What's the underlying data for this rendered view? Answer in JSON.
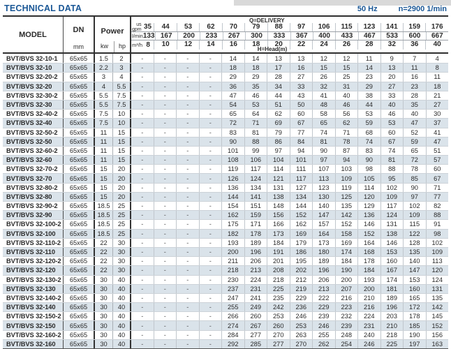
{
  "page": {
    "title": "TECHNICAL DATA",
    "frequency": "50 Hz",
    "speed": "n=2900 1/min"
  },
  "table": {
    "headers": {
      "model": "MODEL",
      "dn": "DN",
      "dn_unit": "mm",
      "power": "Power",
      "kw": "kw",
      "hp": "hp",
      "q_delivery": "Q=DELIVERY",
      "h_head": "H=Head(m)",
      "unit_usgpm_line1": "us",
      "unit_usgpm_line2": "gpm",
      "unit_lmin": "l/min",
      "unit_m3h": "m³/h"
    },
    "q_usgpm": [
      35,
      44,
      53,
      62,
      70,
      79,
      88,
      97,
      106,
      115,
      123,
      141,
      159,
      176
    ],
    "q_lmin": [
      133,
      167,
      200,
      233,
      267,
      300,
      333,
      367,
      400,
      433,
      467,
      533,
      600,
      667
    ],
    "q_m3h": [
      8,
      10,
      12,
      14,
      16,
      18,
      20,
      22,
      24,
      26,
      28,
      32,
      36,
      40
    ],
    "rows": [
      {
        "model": "BVT/BVS 32-10-1",
        "dn": "65x65",
        "kw": "1.5",
        "hp": "2",
        "head": [
          "-",
          "-",
          "-",
          "-",
          "14",
          "14",
          "13",
          "13",
          "12",
          "12",
          "11",
          "9",
          "7",
          "4"
        ]
      },
      {
        "model": "BVT/BVS 32-10",
        "dn": "65x65",
        "kw": "2.2",
        "hp": "3",
        "head": [
          "-",
          "-",
          "-",
          "-",
          "18",
          "18",
          "17",
          "16",
          "15",
          "15",
          "14",
          "13",
          "11",
          "8"
        ]
      },
      {
        "model": "BVT/BVS 32-20-2",
        "dn": "65x65",
        "kw": "3",
        "hp": "4",
        "head": [
          "-",
          "-",
          "-",
          "-",
          "29",
          "29",
          "28",
          "27",
          "26",
          "25",
          "23",
          "20",
          "16",
          "11"
        ]
      },
      {
        "model": "BVT/BVS 32-20",
        "dn": "65x65",
        "kw": "4",
        "hp": "5.5",
        "head": [
          "-",
          "-",
          "-",
          "-",
          "36",
          "35",
          "34",
          "33",
          "32",
          "31",
          "29",
          "27",
          "23",
          "18"
        ]
      },
      {
        "model": "BVT/BVS 32-30-2",
        "dn": "65x65",
        "kw": "5.5",
        "hp": "7.5",
        "head": [
          "-",
          "-",
          "-",
          "-",
          "47",
          "46",
          "44",
          "43",
          "41",
          "40",
          "38",
          "33",
          "28",
          "21"
        ]
      },
      {
        "model": "BVT/BVS 32-30",
        "dn": "65x65",
        "kw": "5.5",
        "hp": "7.5",
        "head": [
          "-",
          "-",
          "-",
          "-",
          "54",
          "53",
          "51",
          "50",
          "48",
          "46",
          "44",
          "40",
          "35",
          "27"
        ]
      },
      {
        "model": "BVT/BVS 32-40-2",
        "dn": "65x65",
        "kw": "7.5",
        "hp": "10",
        "head": [
          "-",
          "-",
          "-",
          "-",
          "65",
          "64",
          "62",
          "60",
          "58",
          "56",
          "53",
          "46",
          "40",
          "30"
        ]
      },
      {
        "model": "BVT/BVS 32-40",
        "dn": "65x65",
        "kw": "7.5",
        "hp": "10",
        "head": [
          "-",
          "-",
          "-",
          "-",
          "72",
          "71",
          "69",
          "67",
          "65",
          "62",
          "59",
          "53",
          "47",
          "37"
        ]
      },
      {
        "model": "BVT/BVS 32-50-2",
        "dn": "65x65",
        "kw": "11",
        "hp": "15",
        "head": [
          "-",
          "-",
          "-",
          "-",
          "83",
          "81",
          "79",
          "77",
          "74",
          "71",
          "68",
          "60",
          "52",
          "41"
        ]
      },
      {
        "model": "BVT/BVS 32-50",
        "dn": "65x65",
        "kw": "11",
        "hp": "15",
        "head": [
          "-",
          "-",
          "-",
          "-",
          "90",
          "88",
          "86",
          "84",
          "81",
          "78",
          "74",
          "67",
          "59",
          "47"
        ]
      },
      {
        "model": "BVT/BVS 32-60-2",
        "dn": "65x65",
        "kw": "11",
        "hp": "15",
        "head": [
          "-",
          "-",
          "-",
          "-",
          "101",
          "99",
          "97",
          "94",
          "90",
          "87",
          "83",
          "74",
          "65",
          "51"
        ]
      },
      {
        "model": "BVT/BVS 32-60",
        "dn": "65x65",
        "kw": "11",
        "hp": "15",
        "head": [
          "-",
          "-",
          "-",
          "-",
          "108",
          "106",
          "104",
          "101",
          "97",
          "94",
          "90",
          "81",
          "72",
          "57"
        ]
      },
      {
        "model": "BVT/BVS 32-70-2",
        "dn": "65x65",
        "kw": "15",
        "hp": "20",
        "head": [
          "-",
          "-",
          "-",
          "-",
          "119",
          "117",
          "114",
          "111",
          "107",
          "103",
          "98",
          "88",
          "78",
          "60"
        ]
      },
      {
        "model": "BVT/BVS 32-70",
        "dn": "65x65",
        "kw": "15",
        "hp": "20",
        "head": [
          "-",
          "-",
          "-",
          "-",
          "126",
          "124",
          "121",
          "117",
          "113",
          "109",
          "105",
          "95",
          "85",
          "67"
        ]
      },
      {
        "model": "BVT/BVS 32-80-2",
        "dn": "65x65",
        "kw": "15",
        "hp": "20",
        "head": [
          "-",
          "-",
          "-",
          "-",
          "136",
          "134",
          "131",
          "127",
          "123",
          "119",
          "114",
          "102",
          "90",
          "71"
        ]
      },
      {
        "model": "BVT/BVS 32-80",
        "dn": "65x65",
        "kw": "15",
        "hp": "20",
        "head": [
          "-",
          "-",
          "-",
          "-",
          "144",
          "141",
          "138",
          "134",
          "130",
          "125",
          "120",
          "109",
          "97",
          "77"
        ]
      },
      {
        "model": "BVT/BVS 32-90-2",
        "dn": "65x65",
        "kw": "18.5",
        "hp": "25",
        "head": [
          "-",
          "-",
          "-",
          "-",
          "154",
          "151",
          "148",
          "144",
          "140",
          "135",
          "129",
          "117",
          "102",
          "82"
        ]
      },
      {
        "model": "BVT/BVS 32-90",
        "dn": "65x65",
        "kw": "18.5",
        "hp": "25",
        "head": [
          "-",
          "-",
          "-",
          "-",
          "162",
          "159",
          "156",
          "152",
          "147",
          "142",
          "136",
          "124",
          "109",
          "88"
        ]
      },
      {
        "model": "BVT/BVS 32-100-2",
        "dn": "65x65",
        "kw": "18.5",
        "hp": "25",
        "head": [
          "-",
          "-",
          "-",
          "-",
          "175",
          "171",
          "166",
          "162",
          "157",
          "152",
          "146",
          "131",
          "115",
          "91"
        ]
      },
      {
        "model": "BVT/BVS 32-100",
        "dn": "65x65",
        "kw": "18.5",
        "hp": "25",
        "head": [
          "-",
          "-",
          "-",
          "-",
          "182",
          "178",
          "173",
          "169",
          "164",
          "158",
          "152",
          "138",
          "122",
          "98"
        ]
      },
      {
        "model": "BVT/BVS 32-110-2",
        "dn": "65x65",
        "kw": "22",
        "hp": "30",
        "head": [
          "-",
          "-",
          "-",
          "-",
          "193",
          "189",
          "184",
          "179",
          "173",
          "169",
          "164",
          "146",
          "128",
          "102"
        ]
      },
      {
        "model": "BVT/BVS 32-110",
        "dn": "65x65",
        "kw": "22",
        "hp": "30",
        "head": [
          "-",
          "-",
          "-",
          "-",
          "200",
          "196",
          "191",
          "186",
          "180",
          "174",
          "168",
          "153",
          "135",
          "109"
        ]
      },
      {
        "model": "BVT/BVS 32-120-2",
        "dn": "65x65",
        "kw": "22",
        "hp": "30",
        "head": [
          "-",
          "-",
          "-",
          "-",
          "211",
          "206",
          "201",
          "195",
          "189",
          "184",
          "178",
          "160",
          "140",
          "113"
        ]
      },
      {
        "model": "BVT/BVS 32-120",
        "dn": "65x65",
        "kw": "22",
        "hp": "30",
        "head": [
          "-",
          "-",
          "-",
          "-",
          "218",
          "213",
          "208",
          "202",
          "196",
          "190",
          "184",
          "167",
          "147",
          "120"
        ]
      },
      {
        "model": "BVT/BVS 32-130-2",
        "dn": "65x65",
        "kw": "30",
        "hp": "40",
        "head": [
          "-",
          "-",
          "-",
          "-",
          "230",
          "224",
          "218",
          "212",
          "206",
          "200",
          "193",
          "174",
          "153",
          "124"
        ]
      },
      {
        "model": "BVT/BVS 32-130",
        "dn": "65x65",
        "kw": "30",
        "hp": "40",
        "head": [
          "-",
          "-",
          "-",
          "-",
          "237",
          "231",
          "225",
          "219",
          "213",
          "207",
          "200",
          "181",
          "160",
          "131"
        ]
      },
      {
        "model": "BVT/BVS 32-140-2",
        "dn": "65x65",
        "kw": "30",
        "hp": "40",
        "head": [
          "-",
          "-",
          "-",
          "-",
          "247",
          "241",
          "235",
          "229",
          "222",
          "216",
          "210",
          "189",
          "165",
          "135"
        ]
      },
      {
        "model": "BVT/BVS 32-140",
        "dn": "65x65",
        "kw": "30",
        "hp": "40",
        "head": [
          "-",
          "-",
          "-",
          "-",
          "255",
          "249",
          "242",
          "236",
          "229",
          "223",
          "216",
          "196",
          "172",
          "142"
        ]
      },
      {
        "model": "BVT/BVS 32-150-2",
        "dn": "65x65",
        "kw": "30",
        "hp": "40",
        "head": [
          "-",
          "-",
          "-",
          "-",
          "266",
          "260",
          "253",
          "246",
          "239",
          "232",
          "224",
          "203",
          "178",
          "145"
        ]
      },
      {
        "model": "BVT/BVS 32-150",
        "dn": "65x65",
        "kw": "30",
        "hp": "40",
        "head": [
          "-",
          "-",
          "-",
          "-",
          "274",
          "267",
          "260",
          "253",
          "246",
          "239",
          "231",
          "210",
          "185",
          "152"
        ]
      },
      {
        "model": "BVT/BVS 32-160-2",
        "dn": "65x65",
        "kw": "30",
        "hp": "40",
        "head": [
          "-",
          "-",
          "-",
          "-",
          "284",
          "277",
          "270",
          "263",
          "255",
          "248",
          "240",
          "218",
          "190",
          "156"
        ]
      },
      {
        "model": "BVT/BVS 32-160",
        "dn": "65x65",
        "kw": "30",
        "hp": "40",
        "head": [
          "-",
          "-",
          "-",
          "-",
          "292",
          "285",
          "277",
          "270",
          "262",
          "254",
          "246",
          "225",
          "197",
          "163"
        ]
      }
    ]
  }
}
